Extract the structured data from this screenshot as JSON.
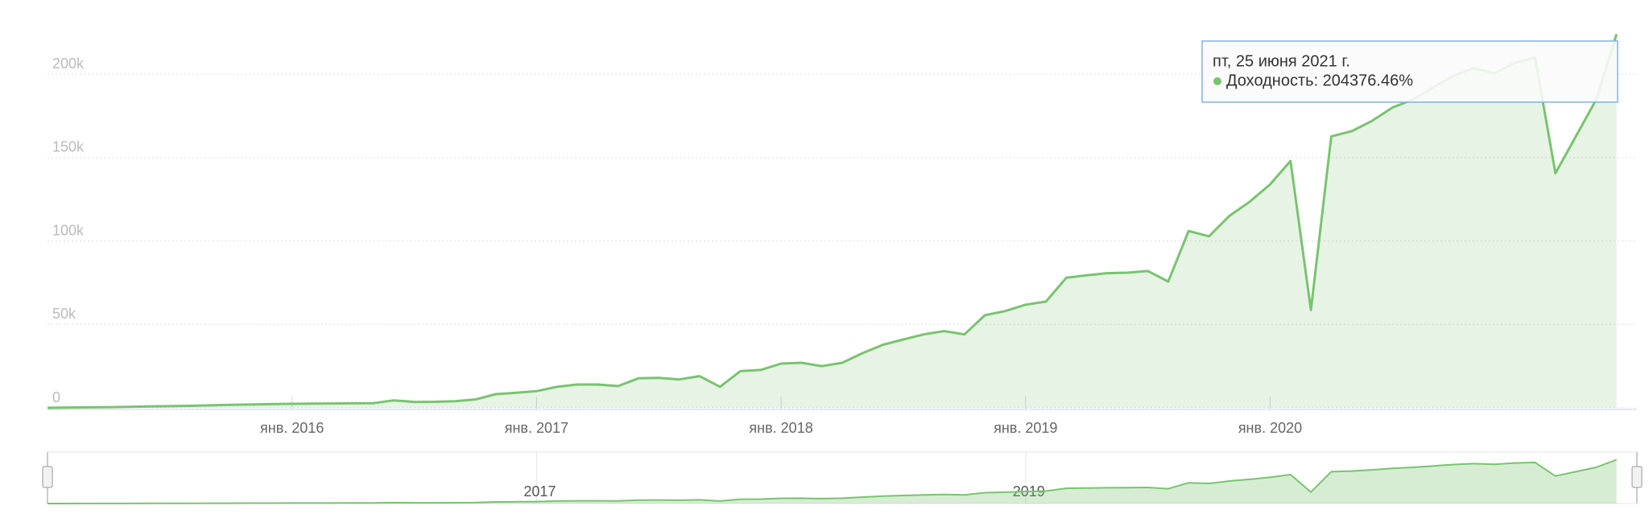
{
  "chart_data": {
    "type": "area",
    "x": [
      "2015-01",
      "2015-02",
      "2015-03",
      "2015-04",
      "2015-05",
      "2015-06",
      "2015-07",
      "2015-08",
      "2015-09",
      "2015-10",
      "2015-11",
      "2015-12",
      "2016-01",
      "2016-02",
      "2016-03",
      "2016-04",
      "2016-05",
      "2016-06",
      "2016-07",
      "2016-08",
      "2016-09",
      "2016-10",
      "2016-11",
      "2016-12",
      "2017-01",
      "2017-02",
      "2017-03",
      "2017-04",
      "2017-05",
      "2017-06",
      "2017-07",
      "2017-08",
      "2017-09",
      "2017-10",
      "2017-11",
      "2017-12",
      "2018-01",
      "2018-02",
      "2018-03",
      "2018-04",
      "2018-05",
      "2018-06",
      "2018-07",
      "2018-08",
      "2018-09",
      "2018-10",
      "2018-11",
      "2018-12",
      "2019-01",
      "2019-02",
      "2019-03",
      "2019-04",
      "2019-05",
      "2019-06",
      "2019-07",
      "2019-08",
      "2019-09",
      "2019-10",
      "2019-11",
      "2019-12",
      "2020-01",
      "2020-02",
      "2020-03",
      "2020-04",
      "2020-05",
      "2020-06",
      "2020-07",
      "2020-08",
      "2020-09",
      "2020-10",
      "2020-11",
      "2020-12",
      "2021-01",
      "2021-02",
      "2021-03",
      "2021-04",
      "2021-05",
      "2021-06"
    ],
    "series": [
      {
        "name": "Доходность",
        "color": "#78c46f",
        "values": [
          0,
          200,
          300,
          400,
          600,
          800,
          1000,
          1200,
          1500,
          1800,
          2000,
          2200,
          2400,
          2500,
          2600,
          2700,
          2800,
          4500,
          3500,
          3600,
          4000,
          5000,
          8200,
          9000,
          10000,
          12600,
          14000,
          14000,
          13000,
          17700,
          18000,
          17000,
          19000,
          12600,
          22000,
          22700,
          26500,
          27000,
          25000,
          27000,
          32800,
          37800,
          41000,
          44000,
          46000,
          44000,
          55500,
          58000,
          61800,
          63700,
          78000,
          79400,
          80700,
          81000,
          82000,
          75700,
          106000,
          102800,
          115000,
          123600,
          134000,
          148000,
          58600,
          162700,
          165800,
          172000,
          180000,
          184700,
          192000,
          199000,
          203700,
          200500,
          206800,
          210000,
          140600,
          162700,
          184700,
          224000
        ]
      }
    ],
    "xlim": [
      "2015-01",
      "2021-07"
    ],
    "xticks": [
      {
        "value": "2016-01",
        "label": "янв. 2016"
      },
      {
        "value": "2017-01",
        "label": "янв. 2017"
      },
      {
        "value": "2018-01",
        "label": "янв. 2018"
      },
      {
        "value": "2019-01",
        "label": "янв. 2019"
      },
      {
        "value": "2020-01",
        "label": "янв. 2020"
      }
    ],
    "ylim": [
      0,
      230000
    ],
    "yticks": [
      0,
      {
        "value": 50000,
        "label": "50k"
      },
      {
        "value": 100000,
        "label": "100k"
      },
      {
        "value": 150000,
        "label": "150k"
      },
      {
        "value": 200000,
        "label": "200k"
      }
    ],
    "grid": true,
    "navigator_xticks": [
      {
        "value": "2017-01",
        "label": "2017"
      },
      {
        "value": "2019-01",
        "label": "2019"
      }
    ],
    "tooltip": {
      "date": "пт, 25 июня 2021 г.",
      "text": "Доходность: 204376.46%"
    }
  }
}
